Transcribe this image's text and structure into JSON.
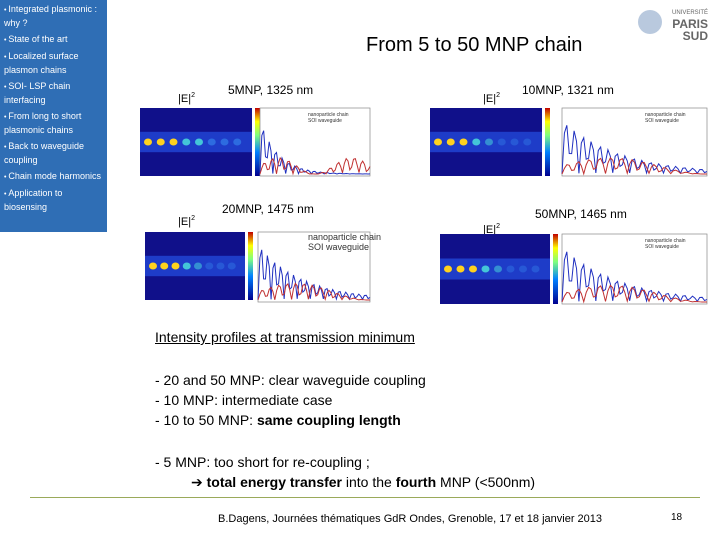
{
  "sidebar": {
    "items": [
      "Integrated plasmonic : why ?",
      "State of the art",
      "Localized surface plasmon chains",
      "SOI- LSP chain interfacing",
      "From long to short plasmonic chains",
      "Back to waveguide coupling",
      "Chain mode harmonics",
      "Application to biosensing"
    ]
  },
  "logo": {
    "line1": "UNIVERSITÉ",
    "line2": "PARIS",
    "line3": "SUD"
  },
  "title": "From 5 to 50 MNP chain",
  "panels": [
    {
      "title": "5MNP, 1325 nm",
      "field": "|E|",
      "power": "2"
    },
    {
      "title": "10MNP, 1321 nm",
      "field": "|E|",
      "power": "2"
    },
    {
      "title": "20MNP, 1475 nm",
      "field": "|E|",
      "power": "2"
    },
    {
      "title": "50MNP, 1465 nm",
      "field": "|E|",
      "power": "2"
    }
  ],
  "legend": [
    "nanoparticle chain",
    "SOI waveguide"
  ],
  "caption": "Intensity profiles at transmission minimum",
  "bullets": [
    [
      {
        "text": "- 20 and 50 MNP: clear waveguide coupling",
        "bold": false
      }
    ],
    [
      {
        "text": "- 10 MNP: intermediate case",
        "bold": false
      }
    ],
    [
      {
        "text": "- 10 to 50 MNP: ",
        "bold": false
      },
      {
        "text": "same coupling length",
        "bold": true
      }
    ]
  ],
  "conclusion": [
    [
      {
        "text": "- 5 MNP: too short for re-coupling ;",
        "bold": false
      }
    ],
    [
      {
        "text": "➔ ",
        "bold": false
      },
      {
        "text": "total energy transfer",
        "bold": true
      },
      {
        "text": " into the ",
        "bold": false
      },
      {
        "text": "fourth",
        "bold": true
      },
      {
        "text": " MNP (<500nm)",
        "bold": false
      }
    ]
  ],
  "footer": {
    "text": "B.Dagens, Journées thématiques GdR Ondes, Grenoble, 17 et 18 janvier 2013",
    "page": "18"
  }
}
